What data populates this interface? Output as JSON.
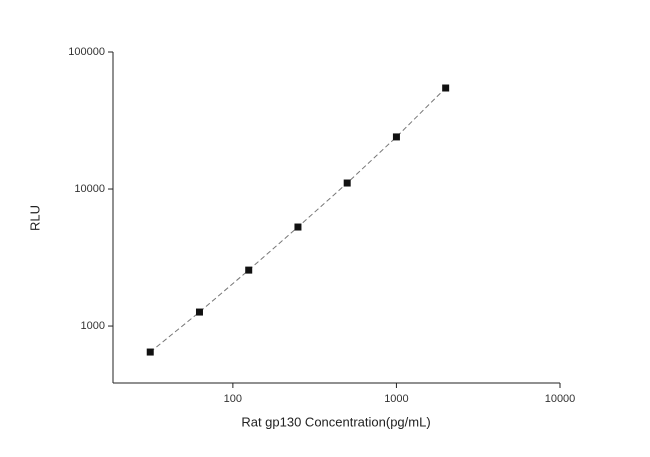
{
  "chart_data": {
    "type": "scatter",
    "xlabel": "Rat gp130 Concentration(pg/mL)",
    "ylabel": "RLU",
    "x": [
      31.25,
      62.5,
      125,
      250,
      500,
      1000,
      2000
    ],
    "series": [
      {
        "color": "#111111",
        "values": [
          646,
          1265,
          2560,
          5280,
          11060,
          24000,
          54600
        ]
      }
    ],
    "xlim": [
      18.5,
      10000
    ],
    "ylim": [
      384,
      100000
    ],
    "xticks": [
      100,
      1000,
      10000
    ],
    "yticks": [
      1000,
      10000,
      100000
    ],
    "xscale": "log",
    "yscale": "log",
    "line_style": "dashed"
  }
}
